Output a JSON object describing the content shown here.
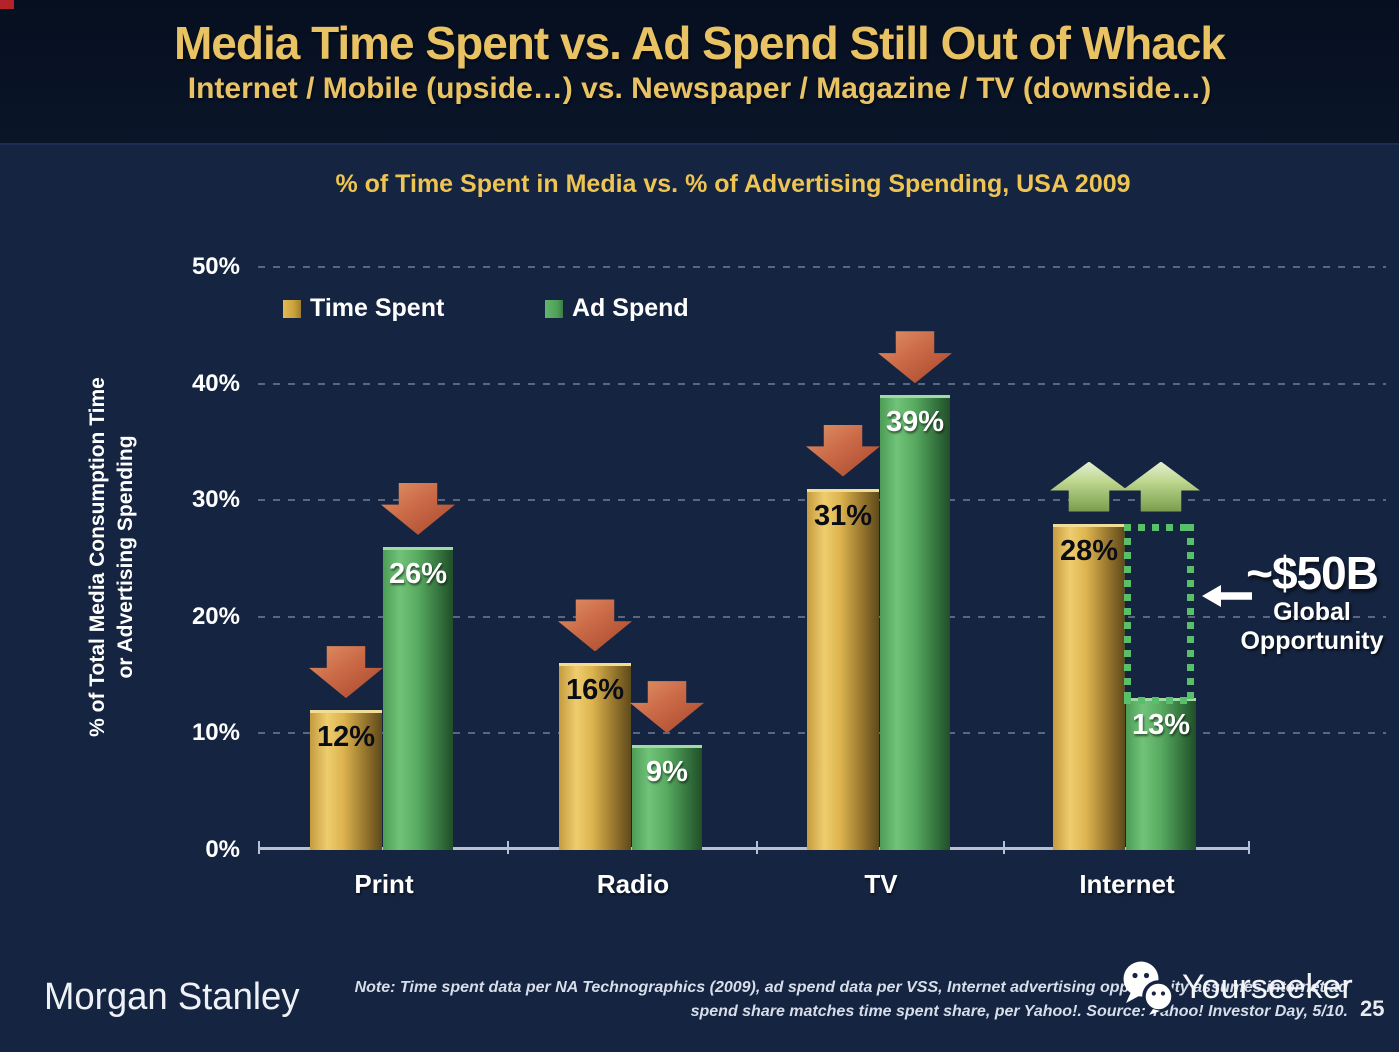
{
  "header": {
    "title": "Media Time Spent vs. Ad Spend Still Out of Whack",
    "subtitle": "Internet / Mobile (upside…) vs. Newspaper / Magazine / TV (downside…)"
  },
  "chart_data": {
    "type": "bar",
    "title": "% of Time Spent in Media vs. % of Advertising Spending, USA 2009",
    "ylabel_line1": "% of Total Media Consumption Time",
    "ylabel_line2": "or Advertising Spending",
    "categories": [
      "Print",
      "Radio",
      "TV",
      "Internet"
    ],
    "series": [
      {
        "name": "Time Spent",
        "values": [
          12,
          16,
          31,
          28
        ],
        "labels": [
          "12%",
          "16%",
          "31%",
          "28%"
        ]
      },
      {
        "name": "Ad Spend",
        "values": [
          26,
          9,
          39,
          13
        ],
        "labels": [
          "26%",
          "9%",
          "39%",
          "13%"
        ]
      }
    ],
    "ylim": [
      0,
      50
    ],
    "yticks": [
      "0%",
      "10%",
      "20%",
      "30%",
      "40%",
      "50%"
    ],
    "grid": "dashed-horizontal",
    "legend_position": "top-left-inside",
    "annotations": {
      "arrows": [
        [
          "down",
          "down"
        ],
        [
          "down",
          "down"
        ],
        [
          "down",
          "down"
        ],
        [
          "up",
          "up"
        ]
      ],
      "gap_box_category_index": 3,
      "opportunity": {
        "value": "~$50B",
        "label_line1": "Global",
        "label_line2": "Opportunity"
      }
    }
  },
  "footer": {
    "brand": "Morgan Stanley",
    "note_line1": "Note: Time spent data per NA Technographics (2009), ad spend data per VSS, Internet advertising opportunity assumes internet ad",
    "note_line2": "spend share matches time spent share, per Yahoo!. Source: Yahoo! Investor Day, 5/10.",
    "watermark": "Yourseeker",
    "page_number": "25"
  },
  "colors": {
    "background": "#152440",
    "header_band": "#0a1529",
    "title_gold": "#e9c263",
    "chart_title_gold": "#eec553",
    "bar_gold_light": "#eecd6f",
    "bar_gold_dark": "#5d4a1c",
    "bar_green_light": "#70c378",
    "bar_green_dark": "#224e29",
    "down_arrow_red": "#cb6a47",
    "up_arrow_green": "#bcd68c",
    "dotted_box_green": "#5abf6b",
    "axis_line": "#b6c2d4",
    "text_white": "#ffffff"
  }
}
